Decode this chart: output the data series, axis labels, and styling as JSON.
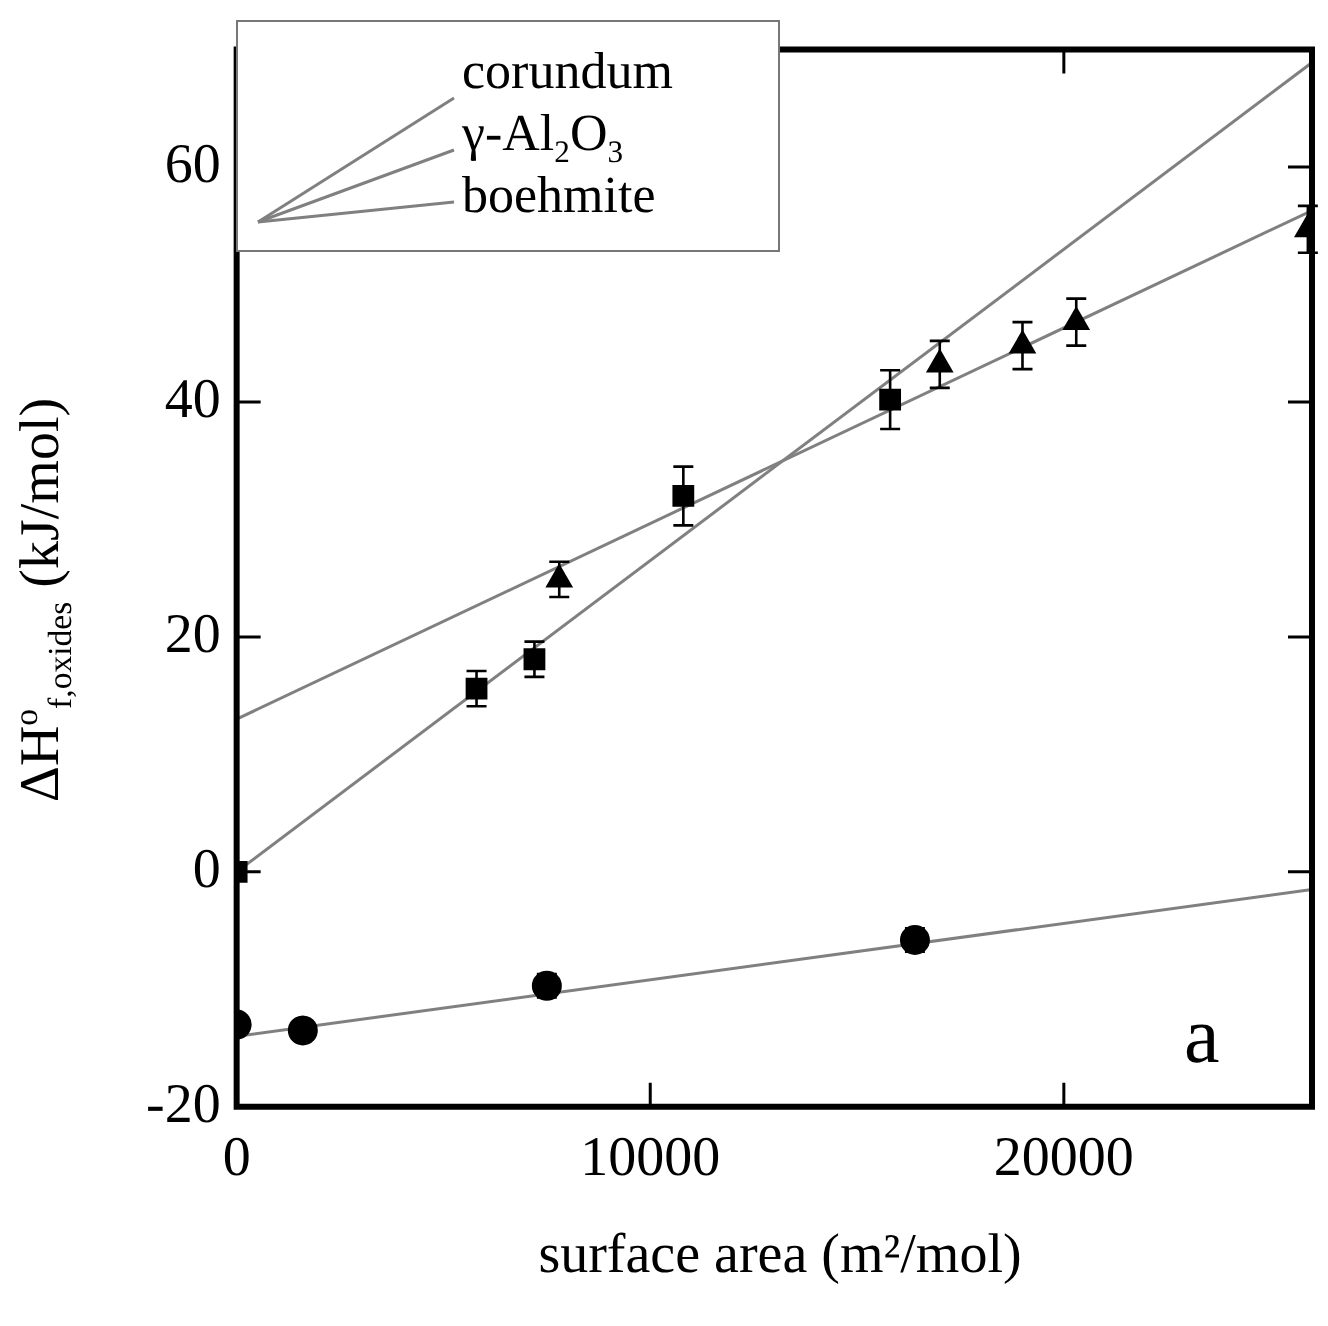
{
  "chart_data": {
    "type": "scatter",
    "xlabel": "surface area (m²/mol)",
    "ylabel": "ΔH$^{o}$$_{f,oxides}$ (kJ/mol)",
    "xlim": [
      0,
      26000
    ],
    "xticks": [
      0,
      10000,
      20000
    ],
    "ylim": [
      -20,
      70
    ],
    "yticks": [
      -20,
      0,
      20,
      40,
      60
    ],
    "legend": "top left",
    "grid": false,
    "annotations": [
      "a"
    ],
    "series": [
      {
        "type": "line",
        "name": "corundum",
        "color": "#808080",
        "marker": "none",
        "x": [
          0,
          26000
        ],
        "values": [
          0,
          68.9
        ]
      },
      {
        "type": "line",
        "name": "γ-Al$_{2}$O$_{3}$",
        "color": "#808080",
        "marker": "none",
        "x": [
          0,
          26000
        ],
        "values": [
          13,
          56.3
        ]
      },
      {
        "type": "line",
        "name": "boehmite",
        "color": "#808080",
        "marker": "none",
        "x": [
          0,
          26000
        ],
        "values": [
          -14,
          -1.5
        ]
      },
      {
        "color": "#000000",
        "marker": "square",
        "x": [
          0,
          5800,
          7200,
          10800,
          15800
        ],
        "values": [
          0,
          15.6,
          18.1,
          32,
          40.2
        ],
        "errors": [
          null,
          1.5,
          1.5,
          2.5,
          2.5
        ]
      },
      {
        "color": "#000000",
        "marker": "triangle",
        "x": [
          7800,
          17000,
          19000,
          20300,
          25900
        ],
        "values": [
          24.9,
          43.2,
          44.8,
          46.8,
          54.7
        ],
        "errors": [
          1.5,
          2,
          2,
          2,
          2
        ]
      },
      {
        "color": "#000000",
        "marker": "circle",
        "x": [
          0,
          1600,
          7500,
          16400
        ],
        "values": [
          -13,
          -13.5,
          -9.7,
          -5.8
        ],
        "errors": [
          null,
          null,
          1,
          1
        ]
      }
    ]
  }
}
